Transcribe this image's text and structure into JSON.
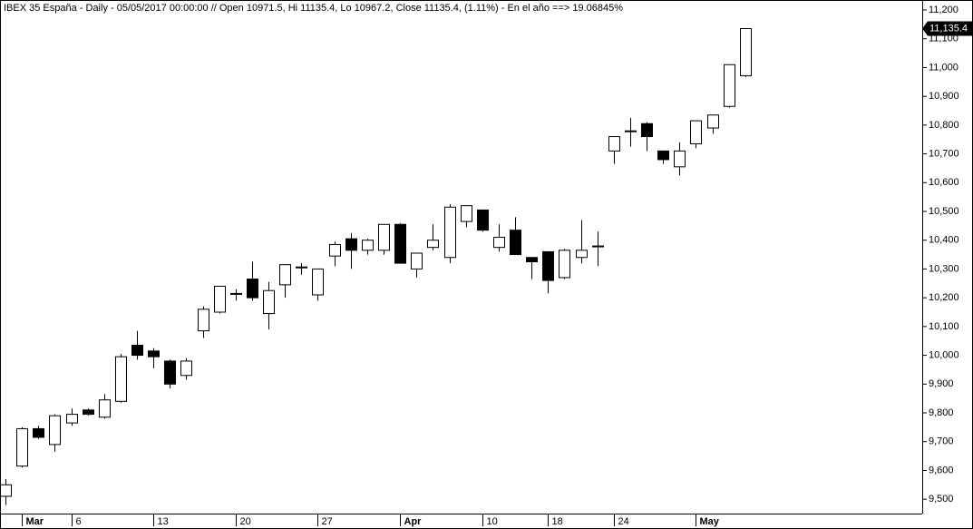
{
  "chart_data": {
    "type": "candlestick",
    "title": "IBEX 35 España - Daily - 05/05/2017 00:00:00 // Open 10971.5, Hi 11135.4, Lo 10967.2, Close 11135.4, (1.11%) - En el año ==> 19.06845%",
    "categories": [
      null,
      "Mar",
      null,
      null,
      "6",
      null,
      null,
      null,
      null,
      "13",
      null,
      null,
      null,
      null,
      "20",
      null,
      null,
      null,
      null,
      "27",
      null,
      null,
      null,
      null,
      "Apr",
      null,
      null,
      null,
      null,
      "10",
      null,
      null,
      null,
      "18",
      null,
      null,
      null,
      "24",
      null,
      null,
      null,
      null,
      "May",
      null,
      null,
      null
    ],
    "open": [
      9510,
      9615,
      9745,
      9690,
      9765,
      9810,
      9785,
      9840,
      10035,
      10015,
      9980,
      9930,
      10085,
      10150,
      10215,
      10265,
      10145,
      10245,
      10305,
      10210,
      10345,
      10405,
      10365,
      10365,
      10455,
      10300,
      10375,
      10340,
      10465,
      10505,
      10375,
      10435,
      10340,
      10360,
      10270,
      10340,
      10378,
      10710,
      10778,
      10805,
      10710,
      10655,
      10735,
      10790,
      10865,
      10971.5
    ],
    "high": [
      9570,
      9750,
      9755,
      9795,
      9815,
      9815,
      9865,
      10005,
      10085,
      10025,
      9985,
      9990,
      10170,
      10240,
      10230,
      10325,
      10255,
      10315,
      10320,
      10300,
      10395,
      10425,
      10405,
      10455,
      10460,
      10355,
      10455,
      10525,
      10520,
      10505,
      10455,
      10480,
      10340,
      10360,
      10370,
      10470,
      10430,
      10760,
      10825,
      10810,
      10710,
      10740,
      10815,
      10835,
      11010,
      11135.4
    ],
    "low": [
      9480,
      9610,
      9710,
      9665,
      9755,
      9790,
      9780,
      9835,
      9985,
      9955,
      9885,
      9915,
      10060,
      10145,
      10190,
      10190,
      10090,
      10200,
      10280,
      10190,
      10310,
      10300,
      10350,
      10350,
      10320,
      10270,
      10365,
      10320,
      10445,
      10430,
      10360,
      10350,
      10265,
      10215,
      10265,
      10320,
      10310,
      10665,
      10725,
      10710,
      10665,
      10625,
      10720,
      10770,
      10860,
      10967.2
    ],
    "close": [
      9550,
      9745,
      9715,
      9790,
      9795,
      9795,
      9845,
      9995,
      10000,
      9995,
      9900,
      9980,
      10160,
      10240,
      10212,
      10200,
      10225,
      10315,
      10307,
      10300,
      10385,
      10365,
      10400,
      10455,
      10320,
      10355,
      10400,
      10515,
      10520,
      10435,
      10410,
      10350,
      10325,
      10260,
      10365,
      10365,
      10380,
      10760,
      10780,
      10760,
      10680,
      10710,
      10815,
      10835,
      11010,
      11135.4
    ],
    "last_price": {
      "value": 11135.4,
      "label": "11,135.4"
    },
    "ylim": [
      9450,
      11250
    ],
    "yticks": [
      {
        "value": 9500,
        "label": "9,500"
      },
      {
        "value": 9600,
        "label": "9,600"
      },
      {
        "value": 9700,
        "label": "9,700"
      },
      {
        "value": 9800,
        "label": "9,800"
      },
      {
        "value": 9900,
        "label": "9,900"
      },
      {
        "value": 10000,
        "label": "10,000"
      },
      {
        "value": 10100,
        "label": "10,100"
      },
      {
        "value": 10200,
        "label": "10,200"
      },
      {
        "value": 10300,
        "label": "10,300"
      },
      {
        "value": 10400,
        "label": "10,400"
      },
      {
        "value": 10500,
        "label": "10,500"
      },
      {
        "value": 10600,
        "label": "10,600"
      },
      {
        "value": 10700,
        "label": "10,700"
      },
      {
        "value": 10800,
        "label": "10,800"
      },
      {
        "value": 10900,
        "label": "10,900"
      },
      {
        "value": 11000,
        "label": "11,000"
      },
      {
        "value": 11100,
        "label": "11,100"
      },
      {
        "value": 11200,
        "label": "11,200"
      }
    ],
    "up_color": "#ffffff",
    "down_color": "#000000",
    "grid": false
  }
}
